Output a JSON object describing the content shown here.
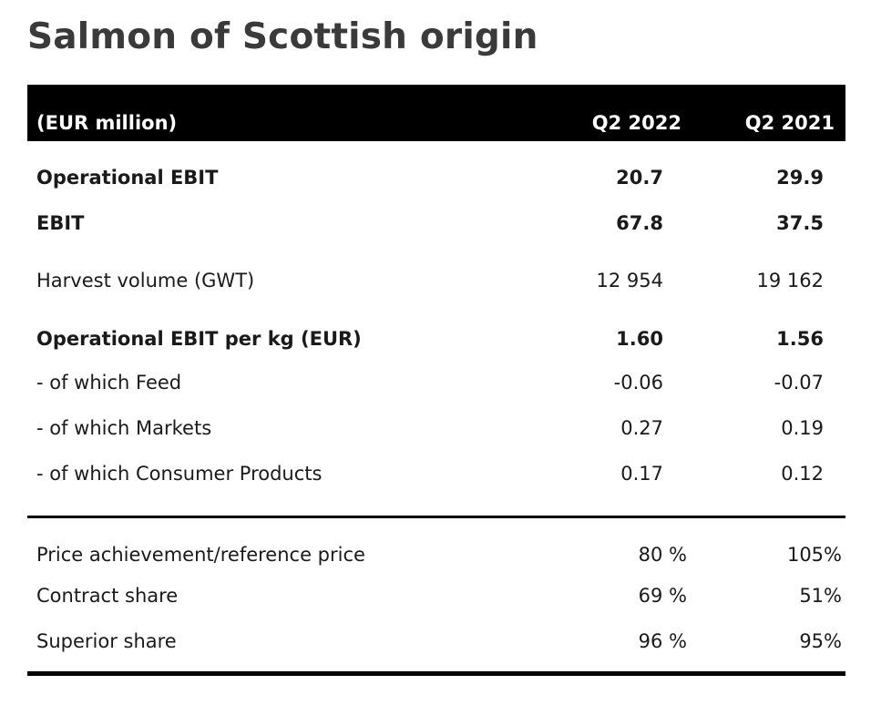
{
  "title": "Salmon of Scottish origin",
  "header": {
    "label": "(EUR million)",
    "col1": "Q2 2022",
    "col2": "Q2 2021"
  },
  "rows": [
    {
      "label": "Operational EBIT",
      "q2_2022": "20.7",
      "q2_2021": "29.9",
      "bold": true
    },
    {
      "label": "EBIT",
      "q2_2022": "67.8",
      "q2_2021": "37.5",
      "bold": true
    },
    {
      "label": "Harvest volume (GWT)",
      "q2_2022": "12 954",
      "q2_2021": "19 162",
      "bold": false
    },
    {
      "label": "Operational EBIT per kg (EUR)",
      "q2_2022": "1.60",
      "q2_2021": "1.56",
      "bold": true
    },
    {
      "label": "- of which Feed",
      "q2_2022": "-0.06",
      "q2_2021": "-0.07",
      "bold": false
    },
    {
      "label": "- of which Markets",
      "q2_2022": "0.27",
      "q2_2021": "0.19",
      "bold": false
    },
    {
      "label": "- of which Consumer Products",
      "q2_2022": "0.17",
      "q2_2021": "0.12",
      "bold": false
    }
  ],
  "rows2": [
    {
      "label": "Price achievement/reference price",
      "q2_2022": "80 %",
      "q2_2021": "105%"
    },
    {
      "label": "Contract share",
      "q2_2022": "69 %",
      "q2_2021": "51%"
    },
    {
      "label": "Superior share",
      "q2_2022": "96 %",
      "q2_2021": "95%"
    }
  ]
}
